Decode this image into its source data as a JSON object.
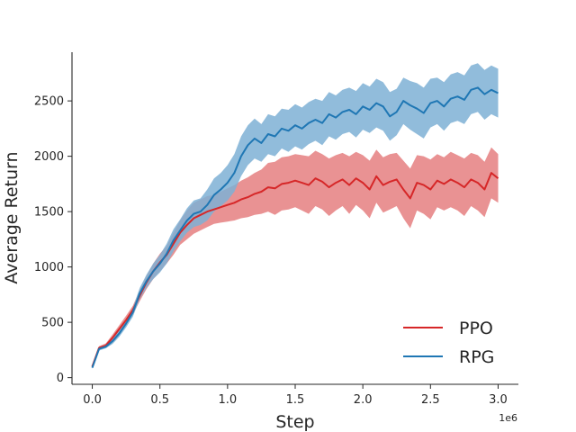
{
  "chart_data": {
    "type": "line",
    "title": "",
    "xlabel": "Step",
    "ylabel": "Average Return",
    "x_offset_label": "1e6",
    "xlim": [
      -0.15,
      3.15
    ],
    "ylim": [
      -60,
      2940
    ],
    "x_ticks": [
      0.0,
      0.5,
      1.0,
      1.5,
      2.0,
      2.5,
      3.0
    ],
    "x_tick_labels": [
      "0.0",
      "0.5",
      "1.0",
      "1.5",
      "2.0",
      "2.5",
      "3.0"
    ],
    "y_ticks": [
      0,
      500,
      1000,
      1500,
      2000,
      2500
    ],
    "y_tick_labels": [
      "0",
      "500",
      "1000",
      "1500",
      "2000",
      "2500"
    ],
    "grid": false,
    "legend_position": "bottom-right",
    "x": [
      0.0,
      0.05,
      0.1,
      0.15,
      0.2,
      0.25,
      0.3,
      0.35,
      0.4,
      0.45,
      0.5,
      0.55,
      0.6,
      0.65,
      0.7,
      0.75,
      0.8,
      0.85,
      0.9,
      0.95,
      1.0,
      1.05,
      1.1,
      1.15,
      1.2,
      1.25,
      1.3,
      1.35,
      1.4,
      1.45,
      1.5,
      1.55,
      1.6,
      1.65,
      1.7,
      1.75,
      1.8,
      1.85,
      1.9,
      1.95,
      2.0,
      2.05,
      2.1,
      2.15,
      2.2,
      2.25,
      2.3,
      2.35,
      2.4,
      2.45,
      2.5,
      2.55,
      2.6,
      2.65,
      2.7,
      2.75,
      2.8,
      2.85,
      2.9,
      2.95,
      3.0
    ],
    "series": [
      {
        "name": "PPO",
        "color": "#d62728",
        "fill_color": "#e57f80",
        "values": [
          100,
          270,
          290,
          360,
          440,
          520,
          610,
          740,
          860,
          960,
          1040,
          1110,
          1210,
          1310,
          1380,
          1440,
          1470,
          1500,
          1520,
          1540,
          1560,
          1580,
          1610,
          1630,
          1660,
          1680,
          1720,
          1710,
          1750,
          1760,
          1780,
          1760,
          1740,
          1800,
          1770,
          1720,
          1760,
          1790,
          1740,
          1800,
          1760,
          1700,
          1820,
          1740,
          1770,
          1790,
          1700,
          1620,
          1760,
          1740,
          1700,
          1780,
          1750,
          1790,
          1760,
          1720,
          1790,
          1760,
          1700,
          1850,
          1800
        ],
        "lower": [
          90,
          255,
          270,
          330,
          405,
          480,
          570,
          690,
          800,
          890,
          960,
          1030,
          1110,
          1200,
          1250,
          1300,
          1330,
          1360,
          1390,
          1400,
          1410,
          1420,
          1440,
          1450,
          1470,
          1480,
          1500,
          1470,
          1510,
          1520,
          1540,
          1510,
          1480,
          1550,
          1520,
          1460,
          1510,
          1550,
          1480,
          1560,
          1510,
          1440,
          1580,
          1490,
          1520,
          1550,
          1440,
          1350,
          1510,
          1480,
          1430,
          1540,
          1510,
          1540,
          1510,
          1460,
          1550,
          1510,
          1450,
          1620,
          1580
        ],
        "upper": [
          110,
          285,
          310,
          390,
          475,
          560,
          650,
          790,
          920,
          1030,
          1120,
          1190,
          1310,
          1420,
          1510,
          1580,
          1610,
          1640,
          1650,
          1680,
          1710,
          1740,
          1780,
          1810,
          1850,
          1880,
          1940,
          1950,
          1990,
          2000,
          2020,
          2010,
          2000,
          2050,
          2020,
          1980,
          2010,
          2030,
          2000,
          2040,
          2010,
          1960,
          2060,
          1990,
          2020,
          2030,
          1960,
          1890,
          2010,
          2000,
          1970,
          2020,
          1990,
          2040,
          2010,
          1980,
          2030,
          2010,
          1950,
          2080,
          2020
        ]
      },
      {
        "name": "RPG",
        "color": "#1f77b4",
        "fill_color": "#7eb0d5",
        "values": [
          90,
          260,
          280,
          330,
          400,
          490,
          590,
          760,
          870,
          960,
          1030,
          1120,
          1240,
          1330,
          1420,
          1480,
          1500,
          1560,
          1650,
          1700,
          1760,
          1850,
          2000,
          2100,
          2160,
          2120,
          2200,
          2180,
          2250,
          2230,
          2280,
          2250,
          2300,
          2330,
          2300,
          2380,
          2350,
          2400,
          2420,
          2380,
          2450,
          2420,
          2480,
          2450,
          2360,
          2400,
          2500,
          2460,
          2430,
          2390,
          2480,
          2500,
          2450,
          2520,
          2540,
          2510,
          2600,
          2620,
          2560,
          2600,
          2570
        ],
        "lower": [
          80,
          245,
          265,
          305,
          370,
          455,
          550,
          710,
          810,
          890,
          950,
          1030,
          1140,
          1230,
          1310,
          1360,
          1380,
          1420,
          1500,
          1550,
          1600,
          1680,
          1820,
          1920,
          1980,
          1950,
          2020,
          2000,
          2070,
          2040,
          2090,
          2060,
          2110,
          2140,
          2100,
          2180,
          2150,
          2200,
          2220,
          2170,
          2240,
          2210,
          2260,
          2230,
          2140,
          2190,
          2290,
          2240,
          2200,
          2160,
          2260,
          2290,
          2230,
          2300,
          2320,
          2290,
          2380,
          2400,
          2330,
          2380,
          2350
        ],
        "upper": [
          100,
          275,
          295,
          355,
          430,
          525,
          630,
          810,
          930,
          1030,
          1110,
          1210,
          1340,
          1430,
          1530,
          1600,
          1620,
          1700,
          1800,
          1850,
          1920,
          2020,
          2180,
          2280,
          2340,
          2290,
          2380,
          2360,
          2430,
          2420,
          2470,
          2440,
          2490,
          2520,
          2500,
          2580,
          2550,
          2600,
          2620,
          2590,
          2660,
          2630,
          2700,
          2670,
          2580,
          2610,
          2710,
          2680,
          2660,
          2620,
          2700,
          2710,
          2670,
          2740,
          2760,
          2730,
          2820,
          2840,
          2780,
          2820,
          2790
        ]
      }
    ]
  }
}
